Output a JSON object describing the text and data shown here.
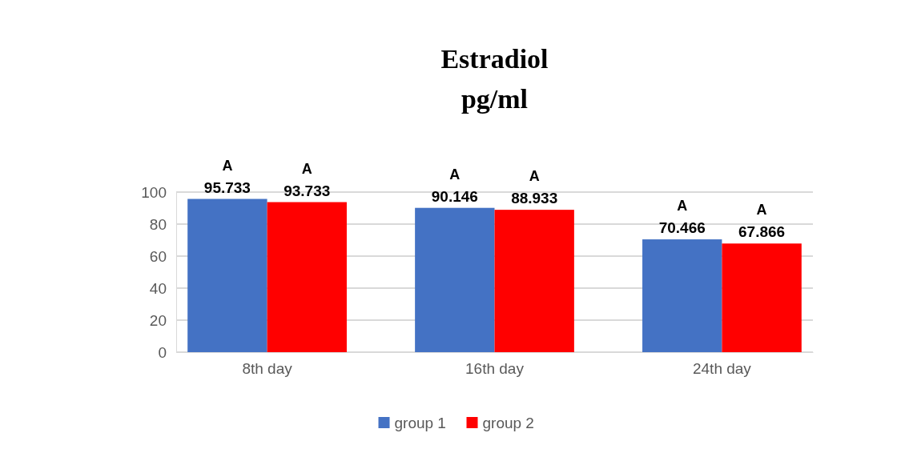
{
  "chart_data": {
    "type": "bar",
    "title": "Estradiol",
    "subtitle": "pg/ml",
    "categories": [
      "8th day",
      "16th day",
      "24th day"
    ],
    "series": [
      {
        "name": "group 1",
        "color": "#4472c4",
        "values": [
          95.733,
          90.146,
          70.466
        ]
      },
      {
        "name": "group 2",
        "color": "#ff0000",
        "values": [
          93.733,
          88.933,
          67.866
        ]
      }
    ],
    "ylim": [
      0,
      100
    ],
    "yticks": [
      0,
      20,
      40,
      60,
      80,
      100
    ],
    "grid": "y",
    "legend": "bottom",
    "data_labels": true,
    "annotations": [
      "A",
      "A",
      "A",
      "A",
      "A",
      "A"
    ]
  }
}
